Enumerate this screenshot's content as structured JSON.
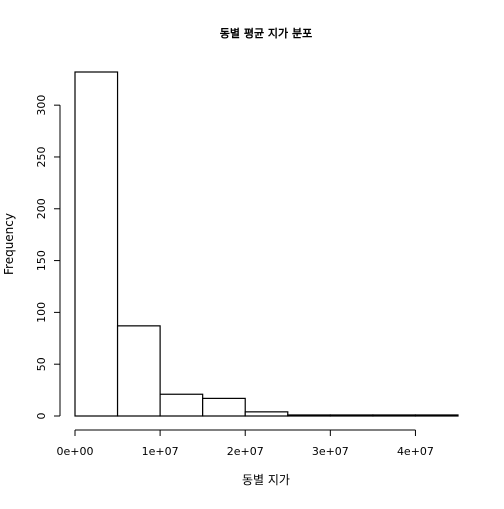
{
  "chart_data": {
    "type": "bar",
    "subtype": "histogram",
    "title": "동별 평균 지가 분포",
    "xlabel": "동별 지가",
    "ylabel": "Frequency",
    "bin_edges": [
      0,
      5000000,
      10000000,
      15000000,
      20000000,
      25000000,
      30000000,
      35000000,
      40000000,
      45000000
    ],
    "values": [
      332,
      87,
      21,
      17,
      4,
      1,
      1,
      1,
      1
    ],
    "xlim": [
      0,
      45000000
    ],
    "ylim": [
      0,
      332
    ],
    "x_ticks": [
      {
        "value": 0,
        "label": "0e+00"
      },
      {
        "value": 10000000,
        "label": "1e+07"
      },
      {
        "value": 20000000,
        "label": "2e+07"
      },
      {
        "value": 30000000,
        "label": "3e+07"
      },
      {
        "value": 40000000,
        "label": "4e+07"
      }
    ],
    "y_ticks": [
      {
        "value": 0,
        "label": "0"
      },
      {
        "value": 50,
        "label": "50"
      },
      {
        "value": 100,
        "label": "100"
      },
      {
        "value": 150,
        "label": "150"
      },
      {
        "value": 200,
        "label": "200"
      },
      {
        "value": 250,
        "label": "250"
      },
      {
        "value": 300,
        "label": "300"
      }
    ],
    "grid": false,
    "bar_fill": "#ffffff",
    "bar_stroke": "#000000"
  }
}
